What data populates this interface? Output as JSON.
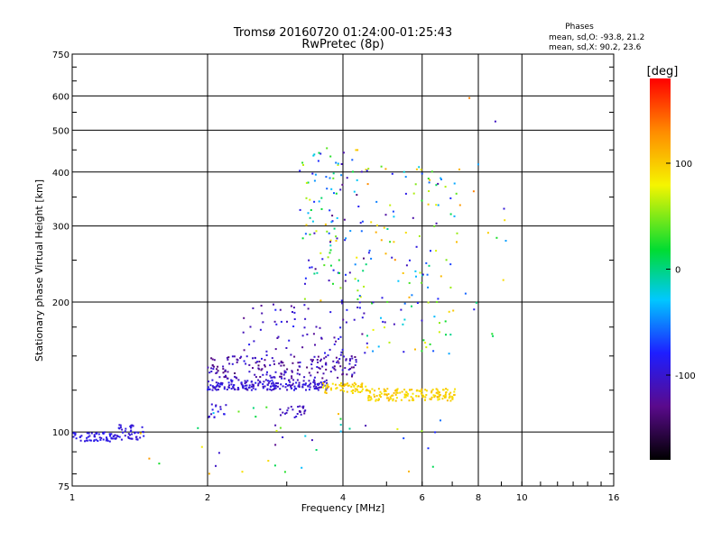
{
  "chart_data": {
    "type": "scatter",
    "title": "Tromsø 20160720 01:24:00-01:25:43",
    "subtitle": "RwPretec (8p)",
    "xlabel": "Frequency [MHz]",
    "ylabel": "Stationary phase Virtual Height [km]",
    "x_scale": "log",
    "y_scale": "log",
    "xlim": [
      1,
      16
    ],
    "ylim": [
      75,
      750
    ],
    "x_ticks": [
      1,
      2,
      4,
      6,
      8,
      10,
      16
    ],
    "x_tick_labels": [
      "1",
      "2",
      "4",
      "6",
      "8",
      "10",
      "16"
    ],
    "y_ticks": [
      75,
      100,
      200,
      300,
      400,
      500,
      600,
      750
    ],
    "y_tick_labels": [
      "75",
      "100",
      "200",
      "300",
      "400",
      "500",
      "600",
      "750"
    ],
    "grid": true,
    "legend": {
      "title": "Phases",
      "lines": [
        "mean, sd,O: -93.8, 21.2",
        "mean, sd,X:  90.2, 23.6"
      ],
      "placement": "top-right"
    },
    "colorbar": {
      "label": "[deg]",
      "range": [
        -180,
        180
      ],
      "ticks": [
        100,
        0,
        -100
      ],
      "tick_labels": [
        "100",
        "0",
        "-100"
      ]
    },
    "clusters": [
      {
        "f": [
          1.0,
          1.25
        ],
        "h": [
          95,
          100
        ],
        "phase": [
          -100,
          -85
        ],
        "n": 60
      },
      {
        "f": [
          1.25,
          1.45
        ],
        "h": [
          96,
          104
        ],
        "phase": [
          -105,
          -85
        ],
        "n": 45
      },
      {
        "f": [
          2.0,
          3.7
        ],
        "h": [
          125,
          132
        ],
        "phase": [
          -115,
          -85
        ],
        "n": 200
      },
      {
        "f": [
          2.0,
          4.3
        ],
        "h": [
          133,
          150
        ],
        "phase": [
          -140,
          -90
        ],
        "n": 180
      },
      {
        "f": [
          3.6,
          4.5
        ],
        "h": [
          123,
          130
        ],
        "phase": [
          80,
          110
        ],
        "n": 60
      },
      {
        "f": [
          4.5,
          7.1
        ],
        "h": [
          118,
          126
        ],
        "phase": [
          85,
          110
        ],
        "n": 160
      },
      {
        "f": [
          2.0,
          2.2
        ],
        "h": [
          108,
          116
        ],
        "phase": [
          -110,
          -80
        ],
        "n": 15
      },
      {
        "f": [
          2.9,
          3.3
        ],
        "h": [
          108,
          115
        ],
        "phase": [
          -120,
          -95
        ],
        "n": 25
      },
      {
        "f": [
          2.4,
          4.5
        ],
        "h": [
          150,
          200
        ],
        "phase": [
          -130,
          -80
        ],
        "n": 70
      },
      {
        "f": [
          3.2,
          4.5
        ],
        "h": [
          200,
          460
        ],
        "phase": [
          -140,
          110
        ],
        "n": 120
      },
      {
        "f": [
          4.5,
          7.3
        ],
        "h": [
          150,
          420
        ],
        "phase": [
          -120,
          130
        ],
        "n": 130
      },
      {
        "f": [
          1.4,
          7.0
        ],
        "h": [
          80,
          118
        ],
        "phase": [
          -130,
          130
        ],
        "n": 40
      },
      {
        "f": [
          7.0,
          9.5
        ],
        "h": [
          150,
          620
        ],
        "phase": [
          -120,
          150
        ],
        "n": 15
      }
    ]
  }
}
